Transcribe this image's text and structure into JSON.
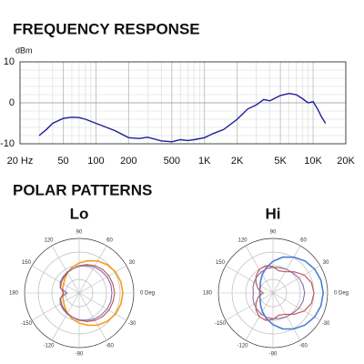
{
  "chart_data": [
    {
      "type": "line",
      "title": "FREQUENCY RESPONSE",
      "ylabel": "dBm",
      "xscale": "log",
      "grid": true,
      "color": "#1f1f9a",
      "x": [
        30,
        35,
        40,
        50,
        60,
        70,
        80,
        100,
        120,
        150,
        200,
        250,
        300,
        400,
        500,
        600,
        700,
        800,
        1000,
        1200,
        1500,
        2000,
        2500,
        3000,
        3500,
        4000,
        5000,
        6000,
        7000,
        8000,
        9000,
        10000,
        11000,
        12000,
        13000
      ],
      "values": [
        -8,
        -6.5,
        -5,
        -3.8,
        -3.5,
        -3.6,
        -4,
        -5,
        -5.8,
        -6.8,
        -8.5,
        -8.7,
        -8.4,
        -9.3,
        -9.5,
        -9,
        -9.2,
        -9,
        -8.5,
        -7.5,
        -6.5,
        -4,
        -1.5,
        -0.5,
        0.8,
        0.5,
        1.8,
        2.3,
        2,
        1,
        0,
        0.3,
        -1.5,
        -3.5,
        -5
      ],
      "xlim": [
        20,
        20000
      ],
      "xticks": [
        {
          "value": 20,
          "label": "20 Hz"
        },
        50,
        100,
        200,
        500,
        {
          "value": 1000,
          "label": "1K"
        },
        {
          "value": 2000,
          "label": "2K"
        },
        {
          "value": 5000,
          "label": "5K"
        },
        {
          "value": 10000,
          "label": "10K"
        },
        {
          "value": 20000,
          "label": "20K"
        }
      ],
      "ylim": [
        -10,
        10
      ],
      "yticks": [
        10,
        0,
        -10
      ]
    },
    {
      "type": "polar",
      "title": "Lo",
      "theta": [
        0,
        15,
        30,
        45,
        60,
        75,
        90,
        105,
        120,
        135,
        150,
        165,
        180,
        195,
        210,
        225,
        240,
        255,
        270,
        285,
        300,
        315,
        330,
        345
      ],
      "thetaticks": [
        90,
        60,
        30,
        {
          "value": 0,
          "label": "0 Deg"
        },
        -30,
        -60,
        -90,
        -120,
        -150,
        180,
        150,
        120
      ],
      "rlim": [
        0,
        1
      ],
      "rticks": [
        0.25,
        0.5,
        0.75,
        1
      ],
      "series": [
        {
          "color": "#f0a020",
          "values": [
            0.8,
            0.79,
            0.77,
            0.73,
            0.68,
            0.61,
            0.55,
            0.49,
            0.43,
            0.37,
            0.33,
            0.31,
            0.3,
            0.31,
            0.33,
            0.37,
            0.43,
            0.49,
            0.55,
            0.61,
            0.68,
            0.73,
            0.77,
            0.79
          ]
        },
        {
          "color": "#b05a5a",
          "values": [
            0.65,
            0.64,
            0.63,
            0.61,
            0.58,
            0.54,
            0.5,
            0.46,
            0.43,
            0.4,
            0.38,
            0.35,
            0.28,
            0.35,
            0.38,
            0.4,
            0.43,
            0.46,
            0.5,
            0.54,
            0.58,
            0.61,
            0.63,
            0.64
          ]
        },
        {
          "color": "#8a6aa0",
          "values": [
            0.6,
            0.6,
            0.59,
            0.57,
            0.55,
            0.52,
            0.49,
            0.46,
            0.44,
            0.42,
            0.4,
            0.36,
            0.22,
            0.36,
            0.4,
            0.42,
            0.44,
            0.46,
            0.49,
            0.52,
            0.55,
            0.57,
            0.59,
            0.6
          ]
        }
      ]
    },
    {
      "type": "polar",
      "title": "Hi",
      "theta": [
        0,
        15,
        30,
        45,
        60,
        75,
        90,
        105,
        120,
        135,
        150,
        165,
        180,
        195,
        210,
        225,
        240,
        255,
        270,
        285,
        300,
        315,
        330,
        345
      ],
      "thetaticks": [
        90,
        60,
        30,
        {
          "value": 0,
          "label": "0 Deg"
        },
        -30,
        -60,
        -90,
        -120,
        -150,
        180,
        150,
        120
      ],
      "rlim": [
        0,
        1
      ],
      "rticks": [
        0.25,
        0.5,
        0.75,
        1
      ],
      "series": [
        {
          "color": "#4a7ed0",
          "values": [
            0.92,
            0.91,
            0.88,
            0.83,
            0.76,
            0.68,
            0.58,
            0.48,
            0.39,
            0.32,
            0.27,
            0.25,
            0.24,
            0.25,
            0.27,
            0.32,
            0.39,
            0.48,
            0.58,
            0.68,
            0.76,
            0.83,
            0.88,
            0.91
          ]
        },
        {
          "color": "#c05050",
          "values": [
            0.75,
            0.73,
            0.66,
            0.55,
            0.45,
            0.42,
            0.48,
            0.52,
            0.5,
            0.44,
            0.36,
            0.28,
            0.18,
            0.28,
            0.36,
            0.44,
            0.5,
            0.52,
            0.48,
            0.42,
            0.45,
            0.55,
            0.66,
            0.73
          ]
        },
        {
          "color": "#8a6aa0",
          "values": [
            0.58,
            0.57,
            0.55,
            0.52,
            0.5,
            0.48,
            0.47,
            0.46,
            0.44,
            0.42,
            0.4,
            0.38,
            0.36,
            0.38,
            0.4,
            0.42,
            0.44,
            0.46,
            0.47,
            0.48,
            0.5,
            0.52,
            0.55,
            0.57
          ]
        }
      ]
    }
  ],
  "section_title": "POLAR PATTERNS"
}
